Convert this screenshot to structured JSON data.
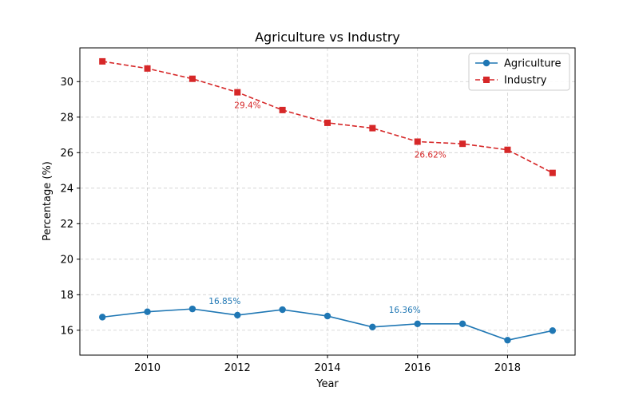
{
  "chart_data": {
    "type": "line",
    "title": "Agriculture vs Industry",
    "xlabel": "Year",
    "ylabel": "Percentage (%)",
    "x": [
      2009,
      2010,
      2011,
      2012,
      2013,
      2014,
      2015,
      2016,
      2017,
      2018,
      2019
    ],
    "xlim": [
      2008.5,
      2019.5
    ],
    "ylim": [
      14.6,
      31.9
    ],
    "xticks": [
      2010,
      2012,
      2014,
      2016,
      2018
    ],
    "yticks": [
      16,
      18,
      20,
      22,
      24,
      26,
      28,
      30
    ],
    "grid": true,
    "legend_position": "top-right",
    "series": [
      {
        "name": "Agriculture",
        "color": "#1f77b4",
        "line_style": "solid",
        "marker": "circle",
        "values": [
          16.74,
          17.04,
          17.2,
          16.85,
          17.16,
          16.8,
          16.18,
          16.36,
          16.36,
          15.44,
          15.98
        ]
      },
      {
        "name": "Industry",
        "color": "#d62728",
        "line_style": "dashed",
        "marker": "square",
        "values": [
          31.14,
          30.74,
          30.16,
          29.4,
          28.4,
          27.68,
          27.38,
          26.62,
          26.5,
          26.16,
          24.86
        ]
      }
    ],
    "annotations": [
      {
        "series": "Industry",
        "x": 2012,
        "text": "29.4%",
        "color": "#d62728"
      },
      {
        "series": "Industry",
        "x": 2016,
        "text": "26.62%",
        "color": "#d62728"
      },
      {
        "series": "Agriculture",
        "x": 2012,
        "text": "16.85%",
        "color": "#1f77b4"
      },
      {
        "series": "Agriculture",
        "x": 2016,
        "text": "16.36%",
        "color": "#1f77b4"
      }
    ]
  }
}
